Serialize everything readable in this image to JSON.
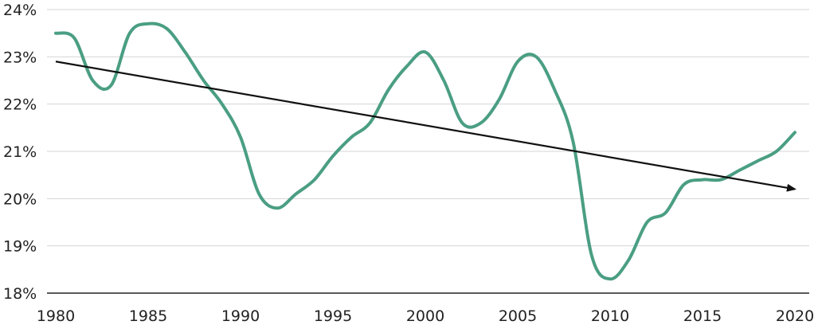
{
  "colors": {
    "series": "#4a9e83",
    "trend": "#111111",
    "grid": "#d4d4d4",
    "axis": "#222222"
  },
  "chart_data": {
    "type": "line",
    "title": "",
    "xlabel": "",
    "ylabel": "",
    "xlim": [
      1980,
      2020
    ],
    "ylim": [
      18,
      24
    ],
    "grid": true,
    "legend": "none",
    "y_ticks": [
      18,
      19,
      20,
      21,
      22,
      23,
      24
    ],
    "y_tick_labels": [
      "18%",
      "19%",
      "20%",
      "21%",
      "22%",
      "23%",
      "24%"
    ],
    "x_ticks": [
      1980,
      1985,
      1990,
      1995,
      2000,
      2005,
      2010,
      2015,
      2020
    ],
    "x_tick_labels": [
      "1980",
      "1985",
      "1990",
      "1995",
      "2000",
      "2005",
      "2010",
      "2015",
      "2020"
    ],
    "series": [
      {
        "x": [
          1980,
          1981,
          1982,
          1983,
          1984,
          1985,
          1986,
          1987,
          1988,
          1989,
          1990,
          1991,
          1992,
          1993,
          1994,
          1995,
          1996,
          1997,
          1998,
          1999,
          2000,
          2001,
          2002,
          2003,
          2004,
          2005,
          2006,
          2007,
          2008,
          2009,
          2010,
          2011,
          2012,
          2013,
          2014,
          2015,
          2016,
          2017,
          2018,
          2019,
          2020
        ],
        "values": [
          23.5,
          23.4,
          22.5,
          22.4,
          23.5,
          23.7,
          23.6,
          23.1,
          22.5,
          22.0,
          21.3,
          20.1,
          19.8,
          20.1,
          20.4,
          20.9,
          21.3,
          21.6,
          22.3,
          22.8,
          23.1,
          22.5,
          21.6,
          21.6,
          22.1,
          22.9,
          23.0,
          22.3,
          21.2,
          18.8,
          18.3,
          18.7,
          19.5,
          19.7,
          20.3,
          20.4,
          20.4,
          20.6,
          20.8,
          21.0,
          21.4
        ]
      },
      {
        "x": [
          1980,
          2020
        ],
        "values": [
          22.9,
          20.2
        ]
      }
    ]
  }
}
